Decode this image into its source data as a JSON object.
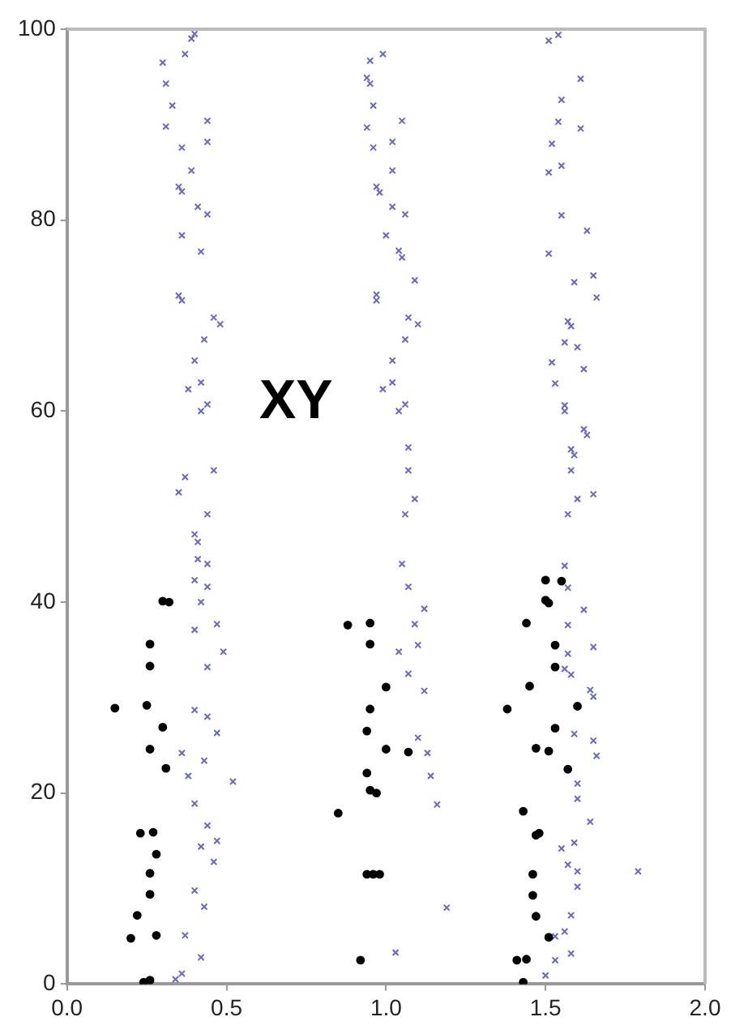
{
  "chart_data": {
    "type": "scatter",
    "xlim": [
      0,
      2
    ],
    "ylim": [
      0,
      100
    ],
    "xticks": [
      {
        "value": 0,
        "label": "0.0"
      },
      {
        "value": 0.5,
        "label": "0.5"
      },
      {
        "value": 1,
        "label": "1.0"
      },
      {
        "value": 1.5,
        "label": "1.5"
      },
      {
        "value": 2,
        "label": "2.0"
      }
    ],
    "yticks": [
      0,
      20,
      40,
      60,
      80,
      100
    ],
    "grid": false,
    "legend": false,
    "annotations": [
      "XY"
    ],
    "series": [
      {
        "color": "#000000",
        "marker": "circle",
        "x": [
          0.3,
          0.32,
          0.26,
          0.26,
          0.15,
          0.25,
          0.3,
          0.26,
          0.31,
          0.23,
          0.27,
          0.28,
          0.26,
          0.26,
          0.22,
          0.2,
          0.28,
          0.24,
          0.26,
          0.88,
          0.95,
          0.95,
          1.0,
          0.95,
          0.94,
          1.0,
          1.07,
          0.94,
          0.95,
          0.97,
          0.85,
          0.94,
          0.96,
          0.98,
          0.92,
          1.38,
          1.5,
          1.55,
          1.5,
          1.51,
          1.44,
          1.53,
          1.53,
          1.45,
          1.6,
          1.53,
          1.47,
          1.51,
          1.57,
          1.43,
          1.47,
          1.48,
          1.46,
          1.46,
          1.47,
          1.51,
          1.41,
          1.44,
          1.43
        ],
        "values": [
          40.1,
          40.0,
          35.6,
          33.3,
          28.9,
          29.2,
          26.9,
          24.6,
          22.6,
          15.8,
          15.9,
          13.6,
          11.6,
          9.4,
          7.2,
          4.8,
          5.1,
          0.2,
          0.4,
          37.6,
          37.8,
          35.6,
          31.1,
          28.8,
          26.5,
          24.6,
          24.3,
          22.1,
          20.3,
          20.0,
          17.9,
          11.5,
          11.5,
          11.5,
          2.5,
          28.8,
          42.3,
          42.2,
          40.2,
          39.9,
          37.8,
          35.5,
          33.2,
          31.2,
          29.1,
          26.8,
          24.7,
          24.4,
          22.5,
          18.1,
          15.6,
          15.8,
          11.5,
          9.3,
          7.1,
          4.9,
          2.5,
          2.6,
          0.2
        ]
      },
      {
        "color": "#6666cc",
        "marker": "cross",
        "x": [
          0.44,
          0.4,
          0.41,
          0.41,
          0.44,
          0.4,
          0.44,
          0.42,
          0.4,
          0.47,
          0.49,
          0.44,
          0.4,
          0.44,
          0.47,
          0.36,
          0.43,
          0.38,
          0.52,
          0.4,
          0.44,
          0.47,
          0.42,
          0.46,
          0.4,
          0.43,
          0.37,
          0.42,
          0.36,
          0.34,
          0.4,
          0.39,
          0.37,
          0.3,
          0.31,
          0.33,
          0.31,
          0.44,
          0.44,
          0.36,
          0.39,
          0.35,
          0.36,
          0.41,
          0.44,
          0.36,
          0.42,
          0.35,
          0.36,
          0.46,
          0.48,
          0.43,
          0.4,
          0.38,
          0.42,
          0.44,
          0.42,
          0.46,
          0.37,
          0.35,
          0.99,
          0.95,
          0.94,
          0.95,
          0.96,
          1.05,
          0.94,
          1.02,
          0.96,
          1.02,
          0.97,
          0.98,
          1.02,
          1.06,
          1.0,
          1.04,
          1.05,
          1.09,
          0.97,
          0.97,
          1.07,
          1.1,
          1.06,
          1.02,
          0.99,
          1.02,
          1.06,
          1.04,
          1.07,
          1.07,
          1.09,
          1.06,
          1.05,
          1.07,
          1.12,
          1.09,
          1.1,
          1.04,
          1.07,
          1.12,
          1.1,
          1.13,
          1.14,
          1.16,
          1.19,
          1.03,
          1.51,
          1.54,
          1.61,
          1.55,
          1.54,
          1.61,
          1.52,
          1.51,
          1.55,
          1.55,
          1.63,
          1.51,
          1.59,
          1.65,
          1.66,
          1.57,
          1.58,
          1.56,
          1.6,
          1.52,
          1.62,
          1.53,
          1.56,
          1.56,
          1.62,
          1.63,
          1.58,
          1.59,
          1.58,
          1.6,
          1.65,
          1.57,
          1.56,
          1.57,
          1.62,
          1.57,
          1.65,
          1.57,
          1.56,
          1.58,
          1.64,
          1.65,
          1.59,
          1.65,
          1.66,
          1.6,
          1.6,
          1.64,
          1.55,
          1.59,
          1.57,
          1.6,
          1.6,
          1.79,
          1.58,
          1.56,
          1.53,
          1.58,
          1.53,
          1.5
        ],
        "values": [
          49.2,
          47.1,
          46.3,
          44.5,
          44.0,
          42.3,
          41.6,
          40.0,
          37.1,
          37.7,
          34.8,
          33.2,
          28.7,
          28.0,
          26.3,
          24.2,
          23.4,
          21.8,
          21.2,
          18.9,
          16.6,
          15.0,
          14.4,
          12.8,
          9.8,
          8.1,
          5.1,
          2.8,
          1.1,
          0.5,
          99.5,
          99.0,
          97.4,
          96.5,
          94.3,
          92.0,
          89.8,
          90.4,
          88.2,
          87.6,
          85.2,
          83.5,
          83.0,
          81.4,
          80.6,
          78.4,
          76.7,
          72.1,
          71.6,
          69.8,
          69.1,
          67.5,
          65.3,
          62.3,
          63.0,
          60.7,
          60.0,
          53.8,
          53.1,
          51.5,
          97.4,
          96.7,
          94.9,
          94.3,
          92.0,
          90.4,
          89.7,
          88.2,
          87.6,
          85.2,
          83.5,
          82.9,
          81.4,
          80.6,
          78.4,
          76.8,
          76.1,
          73.7,
          72.2,
          71.6,
          69.8,
          69.1,
          67.5,
          65.3,
          62.3,
          63.0,
          60.7,
          60.0,
          56.2,
          53.8,
          50.8,
          49.2,
          44.0,
          41.6,
          39.3,
          37.7,
          35.5,
          34.8,
          32.5,
          30.7,
          25.8,
          24.2,
          21.8,
          18.8,
          8.0,
          3.3,
          98.8,
          99.4,
          94.8,
          92.6,
          90.3,
          89.6,
          88.0,
          85.0,
          85.7,
          80.5,
          78.9,
          76.5,
          73.5,
          74.2,
          71.9,
          69.4,
          68.9,
          67.2,
          66.7,
          65.1,
          64.4,
          62.9,
          60.6,
          60.0,
          58.1,
          57.5,
          56.0,
          55.4,
          53.8,
          50.8,
          51.3,
          49.2,
          43.8,
          41.5,
          39.2,
          37.6,
          35.3,
          34.6,
          33.0,
          32.4,
          30.8,
          30.1,
          26.2,
          25.5,
          23.9,
          21.0,
          19.4,
          17.0,
          14.2,
          14.8,
          12.5,
          11.8,
          10.2,
          11.8,
          7.2,
          5.5,
          5.0,
          3.2,
          2.5,
          0.9
        ]
      }
    ]
  }
}
